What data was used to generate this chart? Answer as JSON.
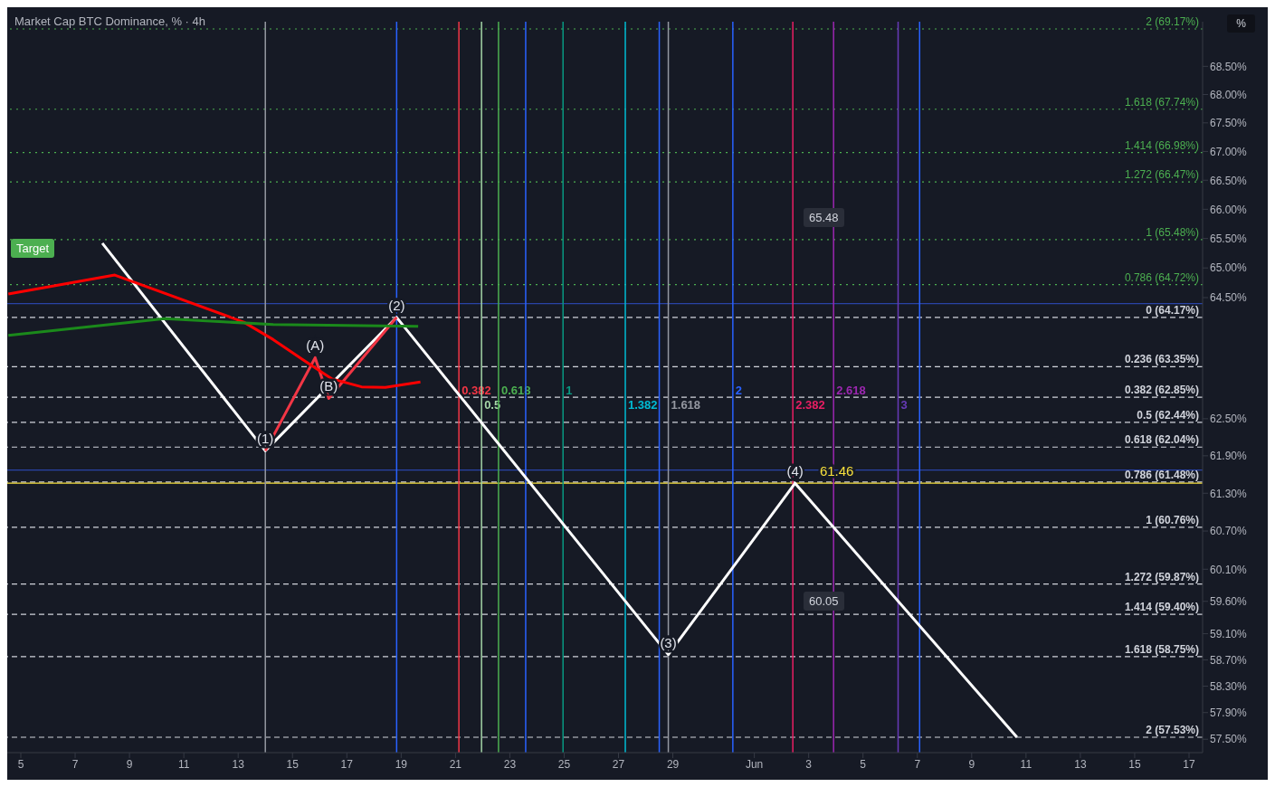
{
  "chart_data": {
    "type": "line",
    "title": "Market Cap BTC Dominance, % · 4h",
    "ylabel": "%",
    "xlim": [
      "--05-04T12:00",
      "--06-17T12:00"
    ],
    "xticks": [
      {
        "value": "--05-05",
        "label": "5"
      },
      {
        "value": "--05-07",
        "label": "7"
      },
      {
        "value": "--05-09",
        "label": "9"
      },
      {
        "value": "--05-11",
        "label": "11"
      },
      {
        "value": "--05-13",
        "label": "13"
      },
      {
        "value": "--05-15",
        "label": "15"
      },
      {
        "value": "--05-17",
        "label": "17"
      },
      {
        "value": "--05-19",
        "label": "19"
      },
      {
        "value": "--05-21",
        "label": "21"
      },
      {
        "value": "--05-23",
        "label": "23"
      },
      {
        "value": "--05-25",
        "label": "25"
      },
      {
        "value": "--05-27",
        "label": "27"
      },
      {
        "value": "--05-29",
        "label": "29"
      },
      {
        "value": "--06-01",
        "label": "Jun"
      },
      {
        "value": "--06-03",
        "label": "3"
      },
      {
        "value": "--06-05",
        "label": "5"
      },
      {
        "value": "--06-07",
        "label": "7"
      },
      {
        "value": "--06-09",
        "label": "9"
      },
      {
        "value": "--06-11",
        "label": "11"
      },
      {
        "value": "--06-13",
        "label": "13"
      },
      {
        "value": "--06-15",
        "label": "15"
      },
      {
        "value": "--06-17",
        "label": "17"
      }
    ],
    "log": true,
    "ylim": [
      57.3,
      69.3
    ],
    "yticks": [
      {
        "value": 68.5,
        "label": "68.50%"
      },
      {
        "value": 68,
        "label": "68.00%"
      },
      {
        "value": 67.5,
        "label": "67.50%"
      },
      {
        "value": 67,
        "label": "67.00%"
      },
      {
        "value": 66.5,
        "label": "66.50%"
      },
      {
        "value": 66,
        "label": "66.00%"
      },
      {
        "value": 65.5,
        "label": "65.50%"
      },
      {
        "value": 65,
        "label": "65.00%"
      },
      {
        "value": 64.5,
        "label": "64.50%"
      },
      {
        "value": 62.5,
        "label": "62.50%"
      },
      {
        "value": 61.9,
        "label": "61.90%"
      },
      {
        "value": 61.3,
        "label": "61.30%"
      },
      {
        "value": 60.7,
        "label": "60.70%"
      },
      {
        "value": 60.1,
        "label": "60.10%"
      },
      {
        "value": 59.6,
        "label": "59.60%"
      },
      {
        "value": 59.1,
        "label": "59.10%"
      },
      {
        "value": 58.7,
        "label": "58.70%"
      },
      {
        "value": 58.3,
        "label": "58.30%"
      },
      {
        "value": 57.9,
        "label": "57.90%"
      },
      {
        "value": 57.5,
        "label": "57.50%"
      }
    ],
    "grid": false,
    "legend": false,
    "marker": "none",
    "series": [
      {
        "color": "#ffffff",
        "x": [
          "--05-08",
          "--05-14",
          "--05-18T20:00",
          "--05-28T20:00",
          "--06-02T12:00",
          "--06-10T16:00"
        ],
        "values": [
          65.42,
          61.98,
          64.17,
          58.78,
          61.46,
          57.53
        ]
      },
      {
        "color": "#f23645",
        "x": [
          "--05-14",
          "--05-15T20:00",
          "--05-16T08:00",
          "--05-18T20:00"
        ],
        "values": [
          61.98,
          63.5,
          62.83,
          64.17
        ]
      },
      {
        "color": "#ff0000",
        "x": [
          "--05-04T13:00",
          "--05-08T11:00",
          "--05-13T05:00",
          "--05-14T07:00",
          "--05-15T09:00",
          "--05-16T11:00",
          "--05-17T13:00",
          "--05-18T10:00",
          "--05-19T17:00"
        ],
        "values": [
          64.56,
          64.88,
          64.09,
          63.8,
          63.47,
          63.15,
          63.02,
          63.01,
          63.1
        ]
      },
      {
        "color": "#1b8a1b",
        "x": [
          "--05-04T13:00",
          "--05-10T07:00",
          "--05-14T07:00",
          "--05-19T15:00"
        ],
        "values": [
          63.87,
          64.15,
          64.05,
          64.02
        ]
      }
    ],
    "ref_lines": [
      {
        "axis": "y",
        "value": 69.17,
        "label": "2 (69.17%)",
        "color": "#4caf50",
        "line_style": "dotted"
      },
      {
        "axis": "y",
        "value": 67.74,
        "label": "1.618 (67.74%)",
        "color": "#4caf50",
        "line_style": "dotted"
      },
      {
        "axis": "y",
        "value": 66.98,
        "label": "1.414 (66.98%)",
        "color": "#4caf50",
        "line_style": "dotted"
      },
      {
        "axis": "y",
        "value": 66.47,
        "label": "1.272 (66.47%)",
        "color": "#4caf50",
        "line_style": "dotted"
      },
      {
        "axis": "y",
        "value": 65.48,
        "label": "1 (65.48%)",
        "color": "#4caf50",
        "line_style": "dotted"
      },
      {
        "axis": "y",
        "value": 64.72,
        "label": "0.786 (64.72%)",
        "color": "#4caf50",
        "line_style": "dotted"
      },
      {
        "axis": "y",
        "value": 64.4,
        "color": "#2943a6",
        "line_style": "solid"
      },
      {
        "axis": "y",
        "value": 64.17,
        "label": "0 (64.17%)",
        "color": "#d1d4dc",
        "line_style": "dashed"
      },
      {
        "axis": "y",
        "value": 63.35,
        "label": "0.236 (63.35%)",
        "color": "#d1d4dc",
        "line_style": "dashed"
      },
      {
        "axis": "y",
        "value": 62.85,
        "label": "0.382 (62.85%)",
        "color": "#d1d4dc",
        "line_style": "dashed"
      },
      {
        "axis": "y",
        "value": 62.44,
        "label": "0.5 (62.44%)",
        "color": "#d1d4dc",
        "line_style": "dashed"
      },
      {
        "axis": "y",
        "value": 62.04,
        "label": "0.618 (62.04%)",
        "color": "#d1d4dc",
        "line_style": "dashed"
      },
      {
        "axis": "y",
        "value": 61.67,
        "color": "#2943a6",
        "line_style": "solid"
      },
      {
        "axis": "y",
        "value": 61.48,
        "label": "0.786 (61.48%)",
        "color": "#d1d4dc",
        "line_style": "dashed"
      },
      {
        "axis": "y",
        "value": 61.46,
        "color": "#f7e03c",
        "line_style": "solid"
      },
      {
        "axis": "y",
        "value": 60.76,
        "label": "1 (60.76%)",
        "color": "#d1d4dc",
        "line_style": "dashed"
      },
      {
        "axis": "y",
        "value": 59.87,
        "label": "1.272 (59.87%)",
        "color": "#d1d4dc",
        "line_style": "dashed"
      },
      {
        "axis": "y",
        "value": 59.4,
        "label": "1.414 (59.40%)",
        "color": "#d1d4dc",
        "line_style": "dashed"
      },
      {
        "axis": "y",
        "value": 58.75,
        "label": "1.618 (58.75%)",
        "color": "#d1d4dc",
        "line_style": "dashed"
      },
      {
        "axis": "y",
        "value": 57.53,
        "label": "2 (57.53%)",
        "color": "#d1d4dc",
        "line_style": "dashed"
      },
      {
        "axis": "x",
        "value": "--05-14",
        "color": "#9598a1",
        "line_style": "solid"
      },
      {
        "axis": "x",
        "value": "--05-18T20:00",
        "color": "#2962ff",
        "line_style": "solid"
      },
      {
        "axis": "x",
        "value": "--05-21T03:00",
        "label": "0.382",
        "color": "#f23645",
        "line_style": "solid"
      },
      {
        "axis": "x",
        "value": "--05-21T23:00",
        "label": "0.5",
        "color": "#a5d6a7",
        "line_style": "solid"
      },
      {
        "axis": "x",
        "value": "--05-22T14:00",
        "label": "0.618",
        "color": "#4caf50",
        "line_style": "solid"
      },
      {
        "axis": "x",
        "value": "--05-23T14:00",
        "color": "#2962ff",
        "line_style": "solid"
      },
      {
        "axis": "x",
        "value": "--05-24T23:00",
        "label": "1",
        "color": "#089981",
        "line_style": "solid"
      },
      {
        "axis": "x",
        "value": "--05-27T06:00",
        "label": "1.382",
        "color": "#00bcd4",
        "line_style": "solid"
      },
      {
        "axis": "x",
        "value": "--05-28T12:00",
        "color": "#2962ff",
        "line_style": "solid"
      },
      {
        "axis": "x",
        "value": "--05-28T20:00",
        "label": "1.618",
        "color": "#9598a1",
        "line_style": "solid"
      },
      {
        "axis": "x",
        "value": "--05-31T05:00",
        "label": "2",
        "color": "#2962ff",
        "line_style": "solid"
      },
      {
        "axis": "x",
        "value": "--06-02T10:00",
        "label": "2.382",
        "color": "#e91e63",
        "line_style": "solid"
      },
      {
        "axis": "x",
        "value": "--06-03T22:00",
        "label": "2.618",
        "color": "#9c27b0",
        "line_style": "solid"
      },
      {
        "axis": "x",
        "value": "--06-06T07:00",
        "label": "3",
        "color": "#673ab7",
        "line_style": "solid"
      },
      {
        "axis": "x",
        "value": "--06-07T02:00",
        "color": "#2962ff",
        "line_style": "solid"
      }
    ],
    "annotations": [
      {
        "text": "(1)",
        "x": "--05-14",
        "y": 61.98
      },
      {
        "text": "(2)",
        "x": "--05-18T20:00",
        "y": 64.17
      },
      {
        "text": "(3)",
        "x": "--05-28T20:00",
        "y": 58.78
      },
      {
        "text": "(4)",
        "x": "--06-02T12:00",
        "y": 61.46
      },
      {
        "text": "(A)",
        "x": "--05-15T20:00",
        "y": 63.5
      },
      {
        "text": "(B)",
        "x": "--05-16T08:00",
        "y": 62.83
      },
      {
        "text": "61.46",
        "x": "--06-02T12:00",
        "y": 61.46
      },
      "Target",
      "65.48",
      "60.05"
    ]
  }
}
